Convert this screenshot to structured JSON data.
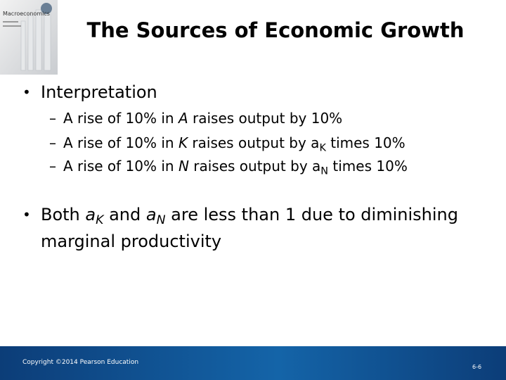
{
  "cover": {
    "title": "Macroeconomics"
  },
  "title": "The Sources of Economic Growth",
  "bullets": [
    {
      "runs": [
        {
          "text": "Interpretation"
        }
      ],
      "sub_bullets": [
        {
          "runs": [
            {
              "text": "A rise of 10% in "
            },
            {
              "text": "A",
              "italic": true
            },
            {
              "text": " raises output by 10%"
            }
          ]
        },
        {
          "runs": [
            {
              "text": "A rise of 10% in "
            },
            {
              "text": "K",
              "italic": true
            },
            {
              "text": " raises output by "
            },
            {
              "text": "a"
            },
            {
              "text": "K",
              "sub": true
            },
            {
              "text": " times 10%"
            }
          ]
        },
        {
          "runs": [
            {
              "text": "A rise of 10% in "
            },
            {
              "text": "N",
              "italic": true
            },
            {
              "text": " raises output by "
            },
            {
              "text": "a"
            },
            {
              "text": "N",
              "sub": true
            },
            {
              "text": " times 10%"
            }
          ]
        }
      ]
    },
    {
      "runs": [
        {
          "text": "Both "
        },
        {
          "text": "a",
          "italic": true
        },
        {
          "text": "K",
          "italic": true,
          "sub": true
        },
        {
          "text": " and "
        },
        {
          "text": "a",
          "italic": true
        },
        {
          "text": "N",
          "italic": true,
          "sub": true
        },
        {
          "text": " are less than 1 due to diminishing marginal productivity"
        }
      ]
    }
  ],
  "footer": {
    "copyright": "Copyright ©2014 Pearson Education",
    "page_number": "6-6"
  }
}
